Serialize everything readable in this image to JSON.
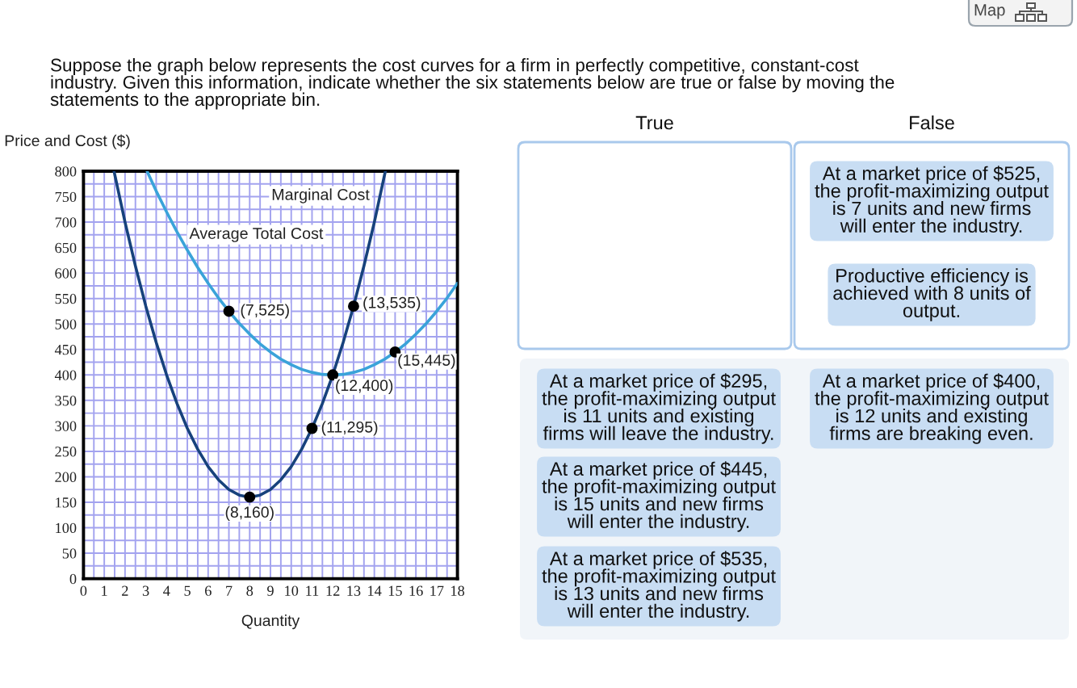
{
  "chart_data": {
    "type": "line",
    "title": "Suppose the graph below represents the cost curves for a firm in perfectly competitive, constant-cost\nindustry. Given this information, indicate whether the six statements below are true or false by moving the\nstatements to the appropriate bin.",
    "xlabel": "Quantity",
    "ylabel": "Price and Cost ($)",
    "series": [
      {
        "name": "Marginal Cost",
        "color": "#17427c",
        "x": [
          1.47,
          2,
          2.5,
          3,
          3.5,
          4,
          4.5,
          5,
          5.5,
          6,
          6.5,
          7,
          7.5,
          8,
          8.5,
          9,
          9.5,
          10,
          10.5,
          11,
          11.5,
          12,
          12.5,
          13,
          13.5,
          14,
          14.53
        ],
        "values": [
          800,
          700,
          614,
          535,
          464,
          400,
          344,
          295,
          254,
          220,
          194,
          175,
          164,
          160,
          164,
          175,
          194,
          220,
          254,
          295,
          344,
          400,
          464,
          535,
          614,
          700,
          800
        ]
      },
      {
        "name": "Average Total Cost",
        "color": "#3aa3d9",
        "x": [
          3.06,
          3.5,
          4,
          4.5,
          5,
          5.5,
          6,
          6.5,
          7,
          7.5,
          8,
          8.5,
          9,
          9.5,
          10,
          10.5,
          11,
          11.5,
          12,
          12.5,
          13,
          13.5,
          14,
          14.5,
          15,
          15.5,
          16,
          16.5,
          17,
          17.5,
          18
        ],
        "values": [
          800,
          761,
          720,
          681,
          645,
          611,
          580,
          551,
          525,
          501,
          480,
          461,
          445,
          431,
          420,
          411,
          405,
          401,
          400,
          401,
          405,
          411,
          420,
          431,
          445,
          461,
          480,
          501,
          525,
          551,
          580
        ]
      },
      {
        "type": "scatter",
        "color": "#000000",
        "marker": "circle",
        "x": [
          7,
          13,
          15,
          12,
          11,
          8
        ],
        "values": [
          525,
          535,
          445,
          400,
          295,
          160
        ]
      }
    ],
    "xlim": [
      0,
      18
    ],
    "ylim": [
      0,
      800
    ],
    "xticks": [
      0,
      {
        "value": 0.5,
        "label": null
      },
      1,
      {
        "value": 1.5,
        "label": null
      },
      2,
      {
        "value": 2.5,
        "label": null
      },
      3,
      {
        "value": 3.5,
        "label": null
      },
      4,
      {
        "value": 4.5,
        "label": null
      },
      5,
      {
        "value": 5.5,
        "label": null
      },
      6,
      {
        "value": 6.5,
        "label": null
      },
      7,
      {
        "value": 7.5,
        "label": null
      },
      8,
      {
        "value": 8.5,
        "label": null
      },
      9,
      {
        "value": 9.5,
        "label": null
      },
      10,
      {
        "value": 10.5,
        "label": null
      },
      11,
      {
        "value": 11.5,
        "label": null
      },
      12,
      {
        "value": 12.5,
        "label": null
      },
      13,
      {
        "value": 13.5,
        "label": null
      },
      14,
      {
        "value": 14.5,
        "label": null
      },
      15,
      {
        "value": 15.5,
        "label": null
      },
      16,
      {
        "value": 16.5,
        "label": null
      },
      17,
      {
        "value": 17.5,
        "label": null
      },
      18
    ],
    "yticks": [
      0,
      {
        "value": 25,
        "label": null
      },
      50,
      {
        "value": 75,
        "label": null
      },
      100,
      {
        "value": 125,
        "label": null
      },
      150,
      {
        "value": 175,
        "label": null
      },
      200,
      {
        "value": 225,
        "label": null
      },
      250,
      {
        "value": 275,
        "label": null
      },
      300,
      {
        "value": 325,
        "label": null
      },
      350,
      {
        "value": 375,
        "label": null
      },
      400,
      {
        "value": 425,
        "label": null
      },
      450,
      {
        "value": 475,
        "label": null
      },
      500,
      {
        "value": 525,
        "label": null
      },
      550,
      {
        "value": 575,
        "label": null
      },
      600,
      {
        "value": 625,
        "label": null
      },
      650,
      {
        "value": 675,
        "label": null
      },
      700,
      {
        "value": 725,
        "label": null
      },
      750,
      {
        "value": 775,
        "label": null
      },
      800
    ],
    "grid": true,
    "annotations": [
      {
        "text": "(7,525)",
        "x": 7,
        "y": 525
      },
      {
        "text": "(13,535)",
        "x": 13,
        "y": 535
      },
      {
        "text": "(15,445)",
        "x": 15,
        "y": 445
      },
      {
        "text": "(12,400)",
        "x": 12,
        "y": 400
      },
      {
        "text": "(11,295)",
        "x": 11,
        "y": 295
      },
      {
        "text": "(8,160)",
        "x": 8,
        "y": 160
      },
      "Map",
      "True",
      "False",
      "At a market price of $525,\nthe profit-maximizing output\nis 7 units and new firms\nwill enter the industry.",
      "Productive efficiency is\nachieved with 8 units of\noutput.",
      "At a market price of $295,\nthe profit-maximizing output\nis 11 units and existing\nfirms will leave the industry.",
      "At a market price of $400,\nthe profit-maximizing output\nis 12 units and existing\nfirms are breaking even.",
      "At a market price of $445,\nthe profit-maximizing output\nis 15 units and new firms\nwill enter the industry.",
      "At a market price of $535,\nthe profit-maximizing output\nis 13 units and new firms\nwill enter the industry."
    ]
  }
}
